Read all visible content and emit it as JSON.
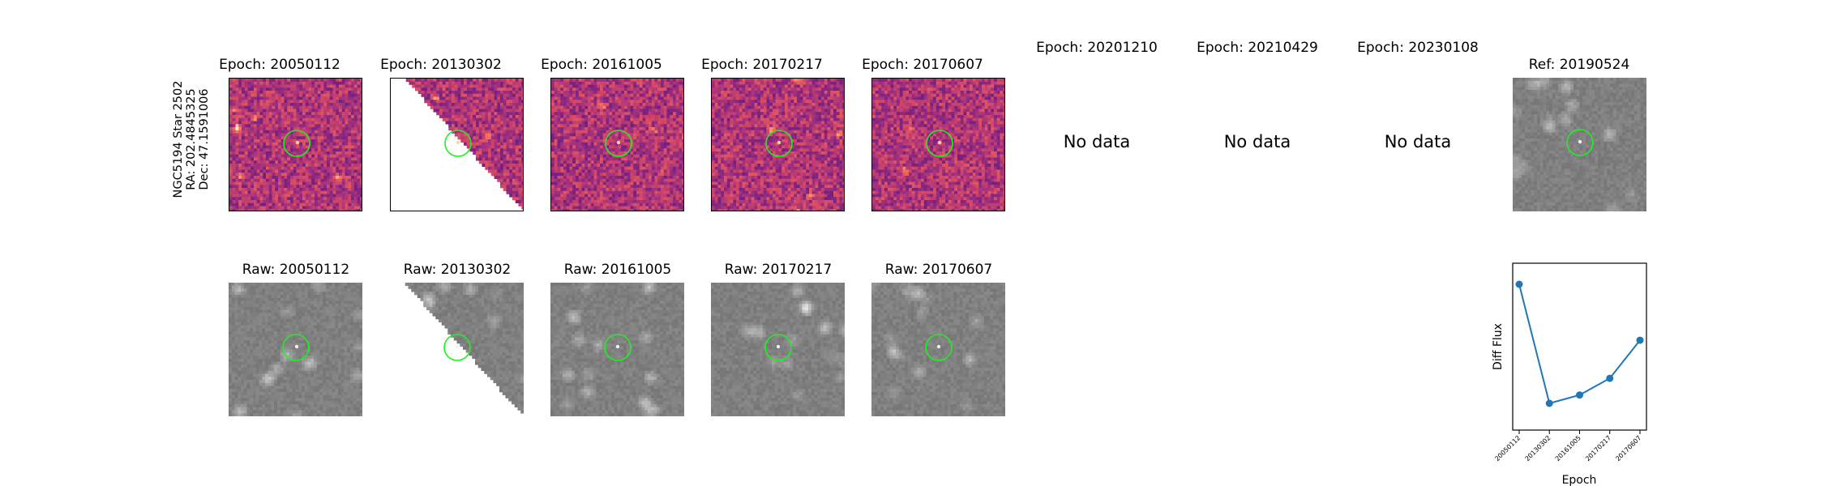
{
  "star_label": {
    "line1": "NGC5194 Star 2502",
    "line2": "RA: 202.4845325",
    "line3": "Dec: 47.1591006"
  },
  "top_row": [
    {
      "title": "Epoch: 20050112",
      "has_data": true
    },
    {
      "title": "Epoch: 20130302",
      "has_data": true,
      "partial_coverage": true
    },
    {
      "title": "Epoch: 20161005",
      "has_data": true
    },
    {
      "title": "Epoch: 20170217",
      "has_data": true
    },
    {
      "title": "Epoch: 20170607",
      "has_data": true
    },
    {
      "title": "Epoch: 20201210",
      "has_data": false
    },
    {
      "title": "Epoch: 20210429",
      "has_data": false
    },
    {
      "title": "Epoch: 20230108",
      "has_data": false
    },
    {
      "title": "Ref: 20190524",
      "has_data": true,
      "grayscale": true
    }
  ],
  "bottom_row": [
    {
      "title": "Raw: 20050112"
    },
    {
      "title": "Raw: 20130302",
      "partial_coverage": true
    },
    {
      "title": "Raw: 20161005"
    },
    {
      "title": "Raw: 20170217"
    },
    {
      "title": "Raw: 20170607"
    }
  ],
  "no_data_text": "No data",
  "colors": {
    "diff_colormap": "magma",
    "aperture_circle": "#22ee22",
    "series_line": "#1f77b4"
  },
  "chart_data": {
    "type": "line",
    "title": "",
    "xlabel": "Epoch",
    "ylabel": "Diff Flux",
    "categories": [
      "20050112",
      "20130302",
      "20161005",
      "20170217",
      "20170607"
    ],
    "series": [
      {
        "values": [
          1.0,
          0.0,
          0.07,
          0.21,
          0.53
        ]
      }
    ],
    "y_ticks_shown": false,
    "grid": false,
    "legend": "none"
  }
}
